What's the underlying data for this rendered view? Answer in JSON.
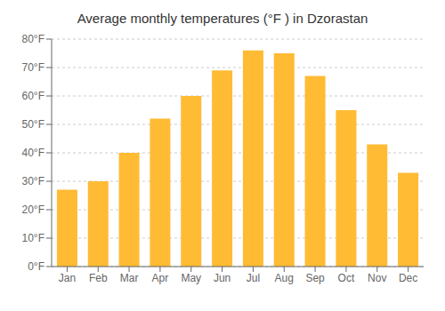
{
  "chart_data": {
    "type": "bar",
    "title": "Average monthly temperatures (°F ) in Dzorastan",
    "categories": [
      "Jan",
      "Feb",
      "Mar",
      "Apr",
      "May",
      "Jun",
      "Jul",
      "Aug",
      "Sep",
      "Oct",
      "Nov",
      "Dec"
    ],
    "values": [
      27,
      30,
      40,
      52,
      60,
      69,
      76,
      75,
      67,
      55,
      43,
      33
    ],
    "color": "#FFBB33",
    "ylim": [
      0,
      80
    ],
    "yticks": [
      {
        "value": 0,
        "label": "0°F"
      },
      {
        "value": 10,
        "label": "10°F"
      },
      {
        "value": 20,
        "label": "20°F"
      },
      {
        "value": 30,
        "label": "30°F"
      },
      {
        "value": 40,
        "label": "40°F"
      },
      {
        "value": 50,
        "label": "50°F"
      },
      {
        "value": 60,
        "label": "60°F"
      },
      {
        "value": 70,
        "label": "70°F"
      },
      {
        "value": 80,
        "label": "80°F"
      }
    ],
    "grid": true
  }
}
